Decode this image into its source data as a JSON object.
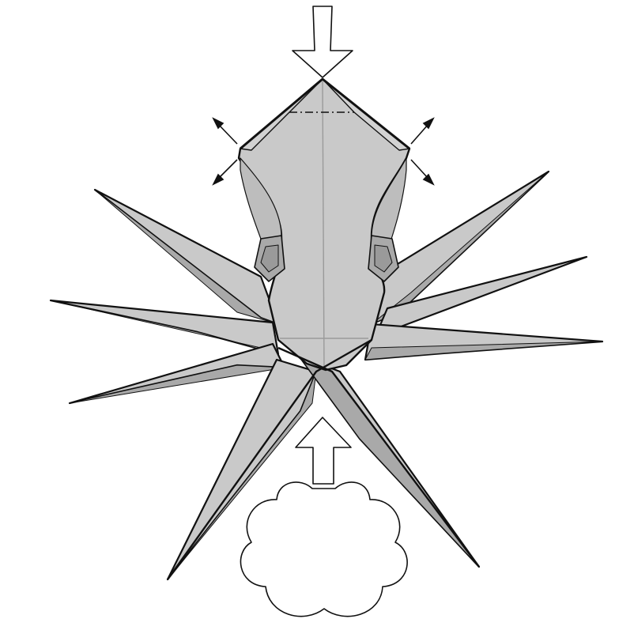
{
  "diagram": {
    "subject": "origami-octopus-fold-step",
    "colors": {
      "paper_face": "#c9c9c9",
      "paper_light": "#d6d6d6",
      "paper_shadow": "#a9a9a9",
      "paper_dark": "#9a9a9a",
      "outline": "#111111",
      "crease": "#9a9a9a",
      "background": "#ffffff"
    },
    "symbols": {
      "push_arrow": "hollow-push-arrow-icon",
      "inflate_symbol": "inflate-cloud-icon",
      "spread_arrows": "spread-arrow-icon",
      "valley_fold_line": "dash-dot-fold-line"
    }
  }
}
